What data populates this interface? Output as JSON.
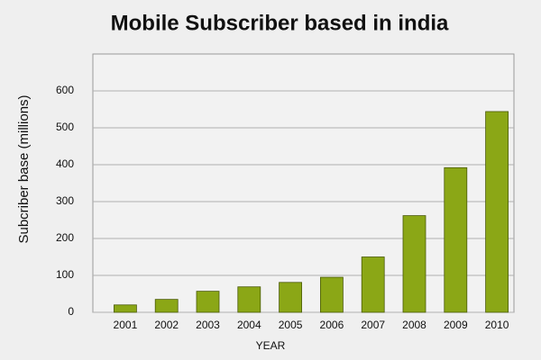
{
  "chart_data": {
    "type": "bar",
    "title": "Mobile Subscriber based in india",
    "x_label": "YEAR",
    "y_label": "Subcriber base (millions)",
    "categories": [
      "2001",
      "2002",
      "2003",
      "2004",
      "2005",
      "2006",
      "2007",
      "2008",
      "2009",
      "2010"
    ],
    "values": [
      20,
      35,
      57,
      69,
      81,
      95,
      150,
      262,
      392,
      544
    ],
    "color": "#8ba716",
    "ylim": [
      0,
      700
    ],
    "yticks": [
      0,
      100,
      200,
      300,
      400,
      500,
      600
    ],
    "grid": true
  }
}
